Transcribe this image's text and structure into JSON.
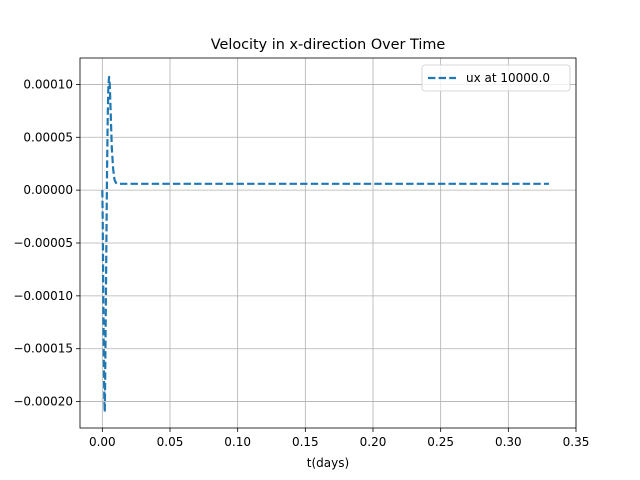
{
  "chart_data": {
    "type": "line",
    "title": "Velocity in x-direction Over Time",
    "xlabel": "t(days)",
    "ylabel": "",
    "xlim": [
      -0.0165,
      0.35
    ],
    "ylim": [
      -0.000225,
      0.000125
    ],
    "x_ticks": [
      0.0,
      0.05,
      0.1,
      0.15,
      0.2,
      0.25,
      0.3,
      0.35
    ],
    "x_tick_labels": [
      "0.00",
      "0.05",
      "0.10",
      "0.15",
      "0.20",
      "0.25",
      "0.30",
      "0.35"
    ],
    "y_ticks": [
      -0.0002,
      -0.00015,
      -0.0001,
      -5e-05,
      0.0,
      5e-05,
      0.0001
    ],
    "y_tick_labels": [
      "−0.00020",
      "−0.00015",
      "−0.00010",
      "−0.00005",
      "0.00000",
      "0.00005",
      "0.00010"
    ],
    "grid": true,
    "legend_position": "top-right",
    "series": [
      {
        "name": "ux at 10000.0",
        "color": "#1f77b4",
        "line_style": "dashed",
        "x": [
          0.0,
          0.0003,
          0.0006,
          0.0009,
          0.0012,
          0.0015,
          0.0018,
          0.0021,
          0.0025,
          0.003,
          0.0035,
          0.004,
          0.0045,
          0.005,
          0.0055,
          0.006,
          0.0065,
          0.007,
          0.008,
          0.009,
          0.01,
          0.011,
          0.012,
          0.013,
          0.015,
          0.02,
          0.05,
          0.1,
          0.15,
          0.2,
          0.25,
          0.3,
          0.33
        ],
        "y": [
          0.0,
          -3e-05,
          -8e-05,
          -0.00013,
          -0.00017,
          -0.0002,
          -0.00021,
          -0.00018,
          -0.00012,
          -5e-05,
          2e-05,
          7e-05,
          0.0001,
          0.000107,
          0.0001,
          8e-05,
          6e-05,
          4e-05,
          2e-05,
          1e-05,
          7e-06,
          6e-06,
          6e-06,
          6e-06,
          6e-06,
          6e-06,
          6e-06,
          6e-06,
          6e-06,
          6e-06,
          6e-06,
          6e-06,
          6e-06
        ]
      }
    ]
  }
}
